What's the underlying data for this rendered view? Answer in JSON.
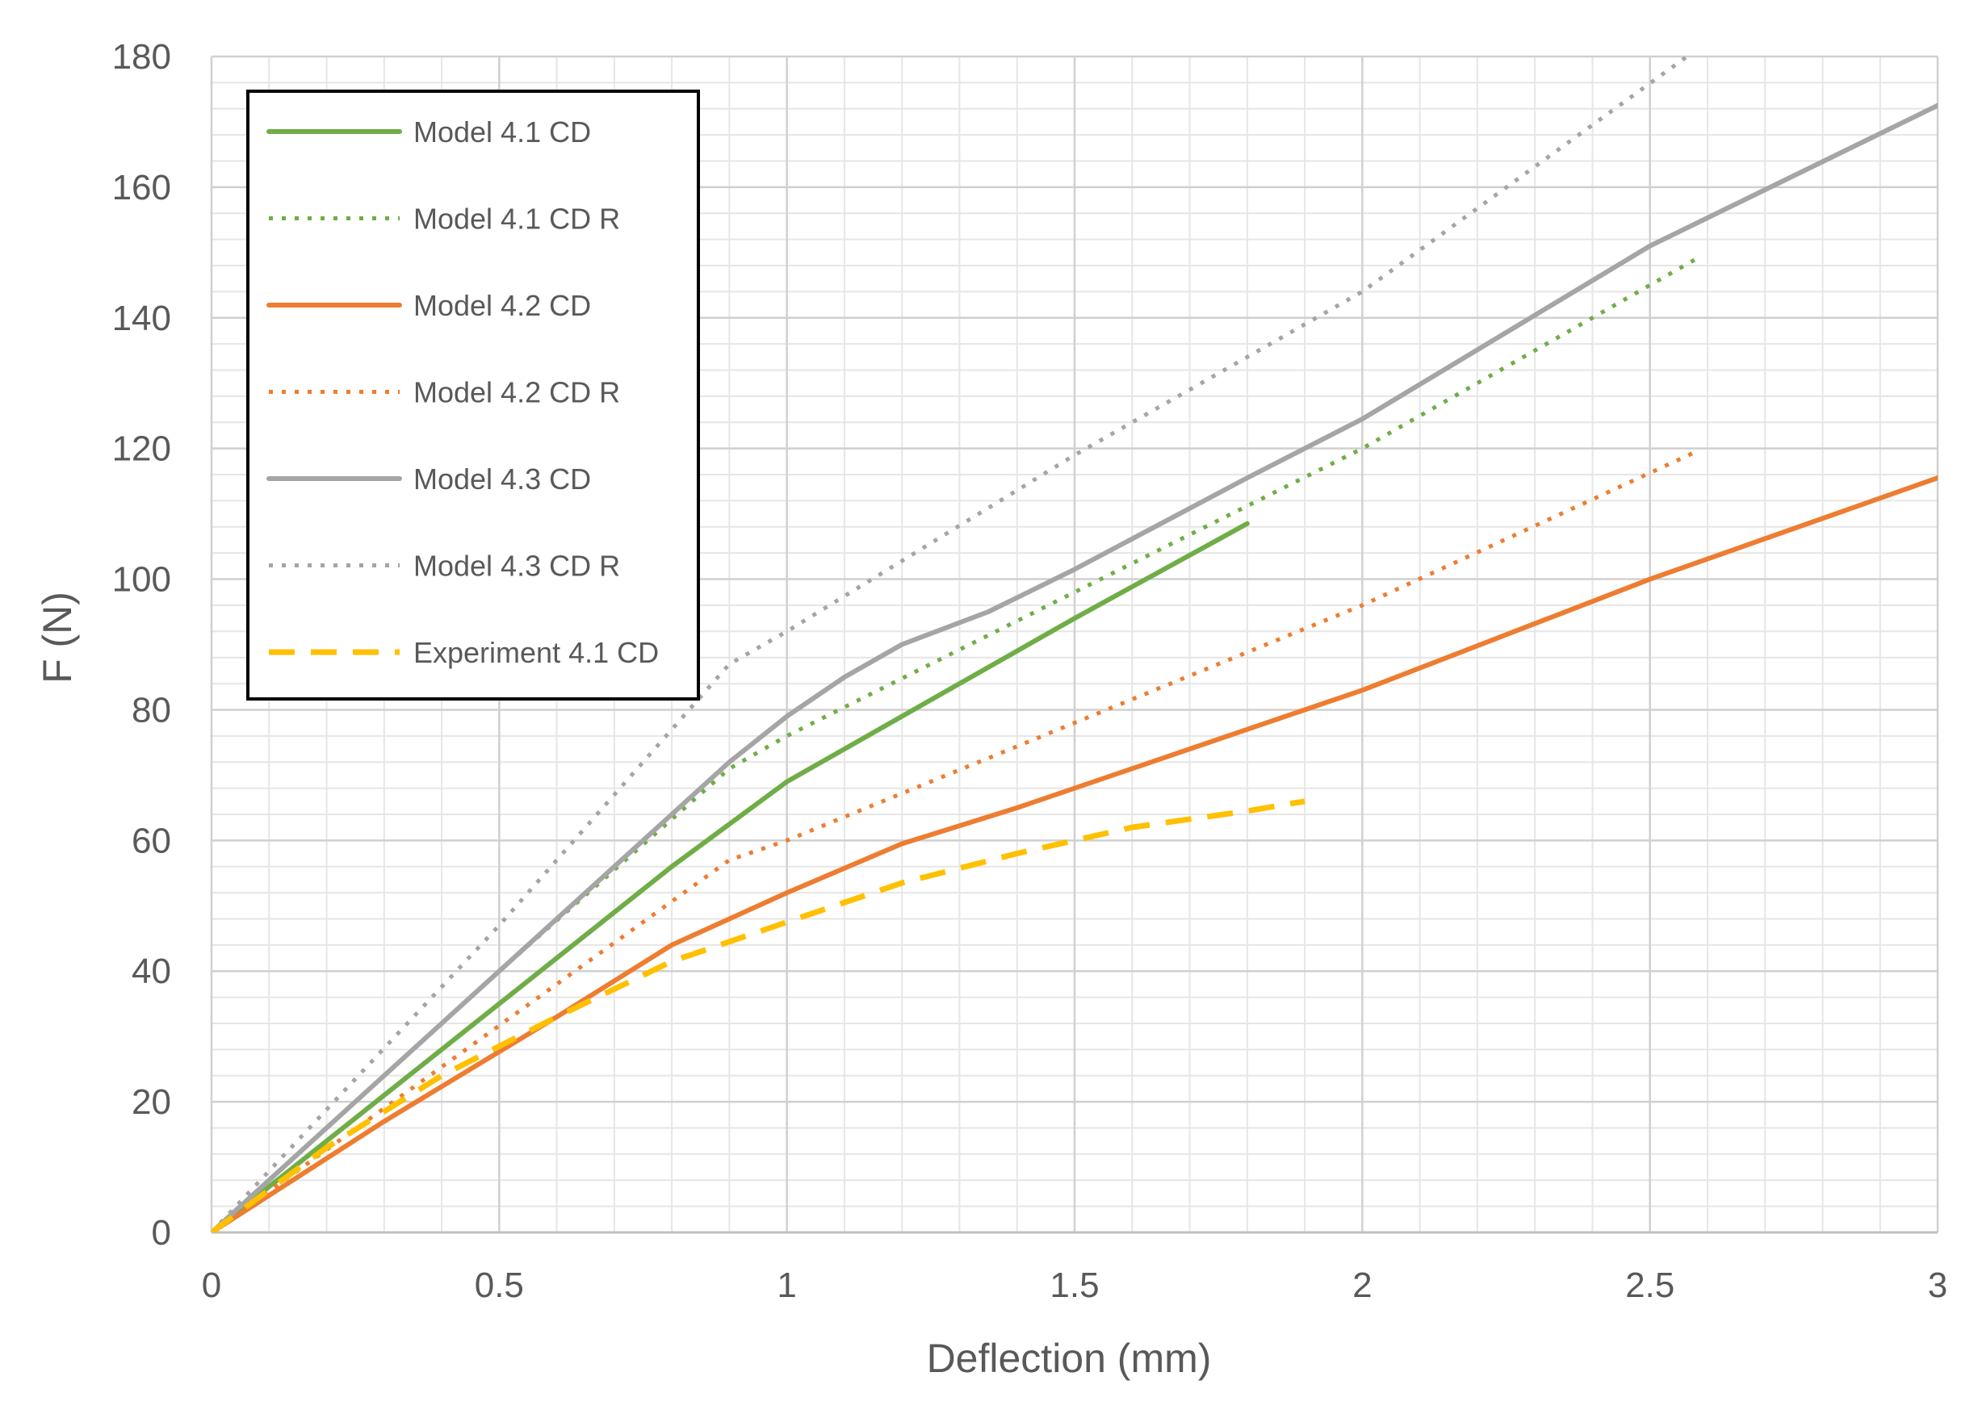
{
  "chart_data": {
    "type": "line",
    "title": "",
    "xlabel": "Deflection (mm)",
    "ylabel": "F (N)",
    "xlim": [
      0,
      3
    ],
    "ylim": [
      0,
      180
    ],
    "xticks": [
      "0",
      "0.5",
      "1",
      "1.5",
      "2",
      "2.5",
      "3"
    ],
    "yticks": [
      "0",
      "20",
      "40",
      "60",
      "80",
      "100",
      "120",
      "140",
      "160",
      "180"
    ],
    "grid": "major and minor",
    "legend_position": "top-left",
    "series": [
      {
        "name": "Model 4.1 CD",
        "color": "#70AD47",
        "style": "solid",
        "points": [
          [
            0,
            0
          ],
          [
            0.2,
            14
          ],
          [
            0.5,
            35
          ],
          [
            0.8,
            56
          ],
          [
            1.0,
            69
          ],
          [
            1.2,
            79
          ],
          [
            1.5,
            94
          ],
          [
            1.8,
            108.5
          ]
        ]
      },
      {
        "name": "Model 4.1 CD R",
        "color": "#70AD47",
        "style": "dotted",
        "points": [
          [
            0,
            0
          ],
          [
            0.5,
            40
          ],
          [
            0.9,
            71
          ],
          [
            1.0,
            76
          ],
          [
            1.5,
            98
          ],
          [
            2.0,
            120
          ],
          [
            2.58,
            149
          ]
        ]
      },
      {
        "name": "Model 4.2 CD",
        "color": "#ED7D31",
        "style": "solid",
        "points": [
          [
            0,
            0
          ],
          [
            0.3,
            17
          ],
          [
            0.6,
            33
          ],
          [
            0.8,
            44
          ],
          [
            1.0,
            52
          ],
          [
            1.2,
            59.5
          ],
          [
            1.4,
            65
          ],
          [
            1.6,
            71
          ],
          [
            1.8,
            77
          ],
          [
            2.0,
            83
          ],
          [
            2.5,
            100
          ],
          [
            3.0,
            115.5
          ]
        ]
      },
      {
        "name": "Model 4.2 CD R",
        "color": "#ED7D31",
        "style": "dotted",
        "points": [
          [
            0,
            0
          ],
          [
            0.3,
            19
          ],
          [
            0.6,
            38
          ],
          [
            0.9,
            57
          ],
          [
            1.0,
            60
          ],
          [
            1.5,
            78
          ],
          [
            2.0,
            96
          ],
          [
            2.58,
            119.5
          ]
        ]
      },
      {
        "name": "Model 4.3 CD",
        "color": "#A5A5A5",
        "style": "solid",
        "points": [
          [
            0,
            0
          ],
          [
            0.3,
            24
          ],
          [
            0.6,
            48
          ],
          [
            0.9,
            72
          ],
          [
            1.0,
            79
          ],
          [
            1.1,
            85
          ],
          [
            1.2,
            90
          ],
          [
            1.35,
            95
          ],
          [
            1.5,
            101.5
          ],
          [
            1.8,
            115.5
          ],
          [
            2.0,
            124.5
          ],
          [
            2.5,
            151
          ],
          [
            3.0,
            172.5
          ]
        ]
      },
      {
        "name": "Model 4.3 CD R",
        "color": "#A5A5A5",
        "style": "dotted",
        "points": [
          [
            0,
            0
          ],
          [
            0.5,
            47
          ],
          [
            0.9,
            87
          ],
          [
            1.0,
            92
          ],
          [
            1.5,
            119
          ],
          [
            2.0,
            144
          ],
          [
            2.58,
            181
          ]
        ]
      },
      {
        "name": "Experiment 4.1 CD",
        "color": "#FFC000",
        "style": "dashed",
        "points": [
          [
            0,
            0
          ],
          [
            0.2,
            13
          ],
          [
            0.4,
            24
          ],
          [
            0.6,
            33
          ],
          [
            0.8,
            41.5
          ],
          [
            1.0,
            47.5
          ],
          [
            1.2,
            53.5
          ],
          [
            1.4,
            58
          ],
          [
            1.6,
            62
          ],
          [
            1.8,
            64.5
          ],
          [
            1.9,
            66
          ]
        ]
      }
    ]
  }
}
